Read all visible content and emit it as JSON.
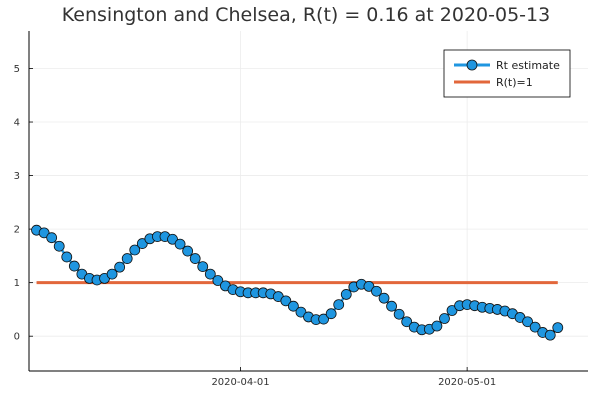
{
  "colors": {
    "rt_series": "#1f96e0",
    "rt_marker_stroke": "#111111",
    "threshold": "#e2673b",
    "grid": "#ececec",
    "axis": "#000000",
    "background": "#ffffff"
  },
  "chart_data": {
    "type": "line",
    "title": "Kensington and Chelsea, R(t) = 0.16 at 2020-05-13",
    "xlabel": "",
    "ylabel": "",
    "x_axis": {
      "type": "date",
      "range": [
        "2020-03-04",
        "2020-05-17"
      ],
      "tick_values": [
        "2020-04-01",
        "2020-05-01"
      ],
      "tick_labels": [
        "2020-04-01",
        "2020-05-01"
      ]
    },
    "y_axis": {
      "range": [
        -0.65,
        5.7
      ],
      "tick_values": [
        0,
        1,
        2,
        3,
        4,
        5
      ],
      "tick_labels": [
        "0",
        "1",
        "2",
        "3",
        "4",
        "5"
      ]
    },
    "grid": true,
    "legend": {
      "placement": "top-right",
      "entries": [
        "Rt estimate",
        "R(t)=1"
      ]
    },
    "series": [
      {
        "name": "Rt estimate",
        "style": "line-with-markers",
        "x": [
          "2020-03-05",
          "2020-03-06",
          "2020-03-07",
          "2020-03-08",
          "2020-03-09",
          "2020-03-10",
          "2020-03-11",
          "2020-03-12",
          "2020-03-13",
          "2020-03-14",
          "2020-03-15",
          "2020-03-16",
          "2020-03-17",
          "2020-03-18",
          "2020-03-19",
          "2020-03-20",
          "2020-03-21",
          "2020-03-22",
          "2020-03-23",
          "2020-03-24",
          "2020-03-25",
          "2020-03-26",
          "2020-03-27",
          "2020-03-28",
          "2020-03-29",
          "2020-03-30",
          "2020-03-31",
          "2020-04-01",
          "2020-04-02",
          "2020-04-03",
          "2020-04-04",
          "2020-04-05",
          "2020-04-06",
          "2020-04-07",
          "2020-04-08",
          "2020-04-09",
          "2020-04-10",
          "2020-04-11",
          "2020-04-12",
          "2020-04-13",
          "2020-04-14",
          "2020-04-15",
          "2020-04-16",
          "2020-04-17",
          "2020-04-18",
          "2020-04-19",
          "2020-04-20",
          "2020-04-21",
          "2020-04-22",
          "2020-04-23",
          "2020-04-24",
          "2020-04-25",
          "2020-04-26",
          "2020-04-27",
          "2020-04-28",
          "2020-04-29",
          "2020-04-30",
          "2020-05-01",
          "2020-05-02",
          "2020-05-03",
          "2020-05-04",
          "2020-05-05",
          "2020-05-06",
          "2020-05-07",
          "2020-05-08",
          "2020-05-09",
          "2020-05-10",
          "2020-05-11",
          "2020-05-12",
          "2020-05-13"
        ],
        "values": [
          1.98,
          1.93,
          1.84,
          1.68,
          1.48,
          1.31,
          1.16,
          1.08,
          1.05,
          1.08,
          1.16,
          1.29,
          1.45,
          1.61,
          1.73,
          1.82,
          1.86,
          1.86,
          1.81,
          1.72,
          1.59,
          1.45,
          1.3,
          1.16,
          1.04,
          0.94,
          0.87,
          0.83,
          0.81,
          0.81,
          0.81,
          0.79,
          0.74,
          0.66,
          0.56,
          0.45,
          0.36,
          0.31,
          0.32,
          0.42,
          0.59,
          0.78,
          0.92,
          0.97,
          0.93,
          0.84,
          0.71,
          0.56,
          0.41,
          0.27,
          0.17,
          0.12,
          0.13,
          0.19,
          0.33,
          0.48,
          0.57,
          0.59,
          0.57,
          0.54,
          0.52,
          0.5,
          0.47,
          0.42,
          0.35,
          0.27,
          0.17,
          0.07,
          0.02,
          0.16
        ]
      },
      {
        "name": "R(t)=1",
        "style": "line",
        "x": [
          "2020-03-05",
          "2020-05-13"
        ],
        "values": [
          1,
          1
        ]
      }
    ]
  }
}
